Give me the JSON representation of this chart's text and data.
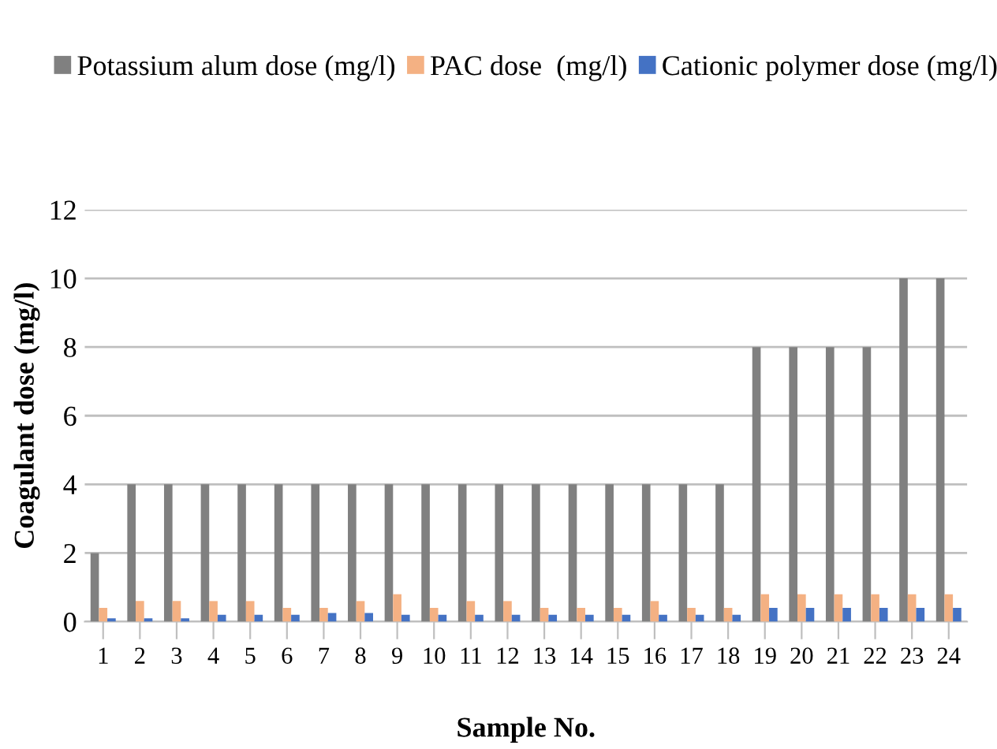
{
  "chart_data": {
    "type": "bar",
    "xlabel": "Sample No.",
    "ylabel": "Coagulant dose (mg/l)",
    "categories": [
      "1",
      "2",
      "3",
      "4",
      "5",
      "6",
      "7",
      "8",
      "9",
      "10",
      "11",
      "12",
      "13",
      "14",
      "15",
      "16",
      "17",
      "18",
      "19",
      "20",
      "21",
      "22",
      "23",
      "24"
    ],
    "series": [
      {
        "name": "Potassium alum dose (mg/l)",
        "color": "#808080",
        "values": [
          2,
          4,
          4,
          4,
          4,
          4,
          4,
          4,
          4,
          4,
          4,
          4,
          4,
          4,
          4,
          4,
          4,
          4,
          8,
          8,
          8,
          8,
          10,
          10
        ]
      },
      {
        "name": "PAC dose  (mg/l)",
        "color": "#f4b183",
        "values": [
          0.4,
          0.6,
          0.6,
          0.6,
          0.6,
          0.4,
          0.4,
          0.6,
          0.8,
          0.4,
          0.6,
          0.6,
          0.4,
          0.4,
          0.4,
          0.6,
          0.4,
          0.4,
          0.8,
          0.8,
          0.8,
          0.8,
          0.8,
          0.8
        ]
      },
      {
        "name": "Cationic polymer dose (mg/l)",
        "color": "#4472c4",
        "values": [
          0.1,
          0.1,
          0.1,
          0.2,
          0.2,
          0.2,
          0.25,
          0.25,
          0.2,
          0.2,
          0.2,
          0.2,
          0.2,
          0.2,
          0.2,
          0.2,
          0.2,
          0.2,
          0.4,
          0.4,
          0.4,
          0.4,
          0.4,
          0.4
        ]
      }
    ],
    "ylim": [
      0,
      12
    ],
    "yticks": [
      0,
      2,
      4,
      6,
      8,
      10,
      12
    ],
    "grid": "y",
    "legend": "top"
  }
}
